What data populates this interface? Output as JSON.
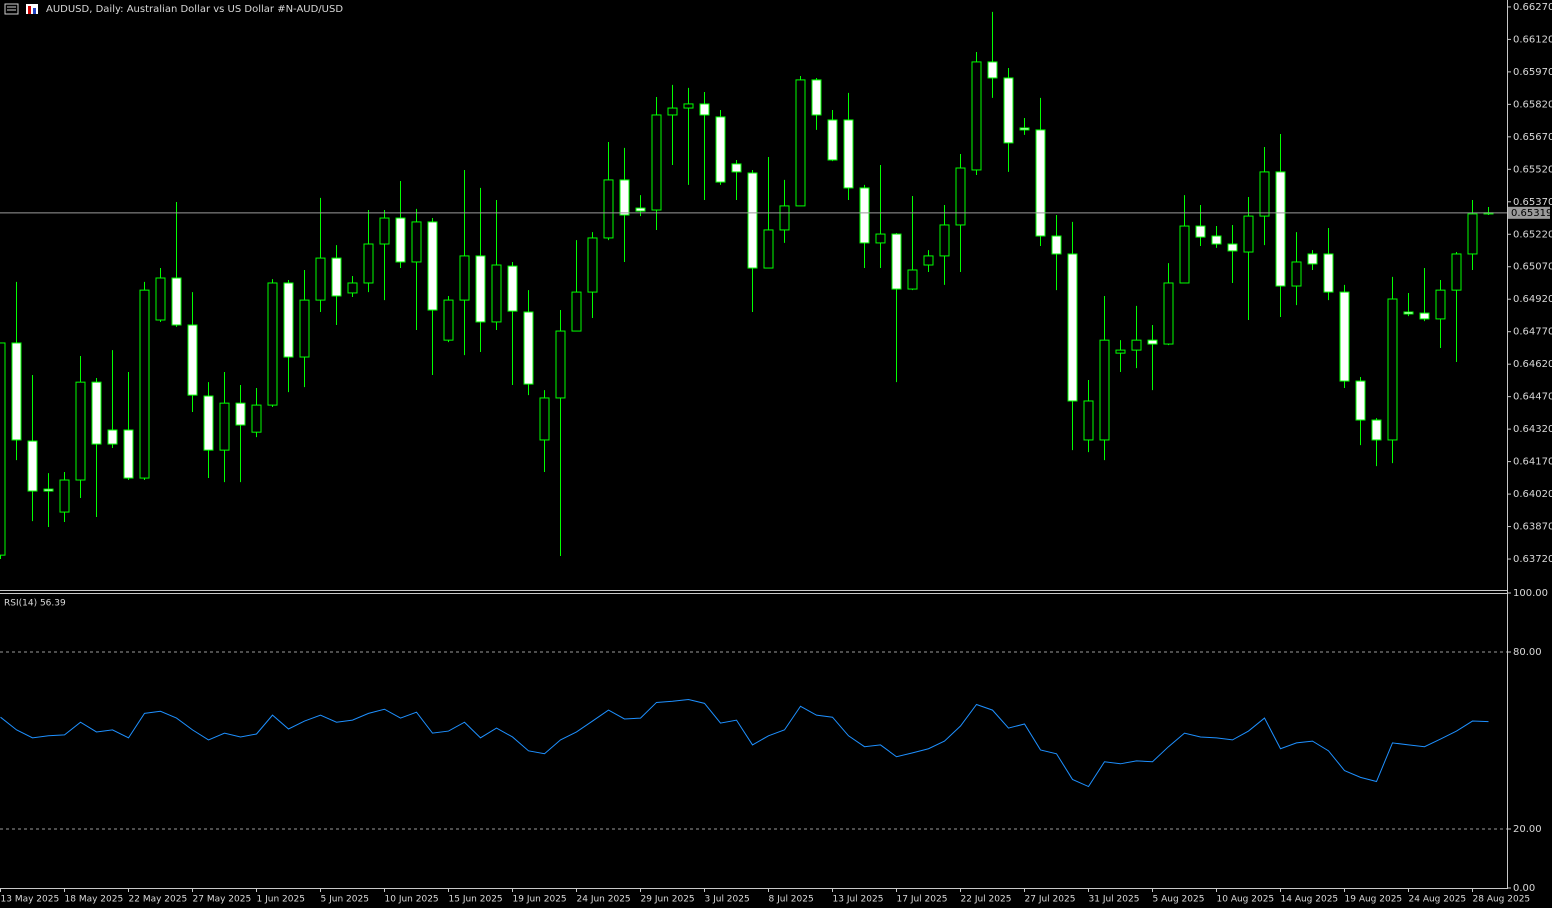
{
  "chart_data": [
    {
      "type": "candlestick",
      "title": "AUDUSD, Daily:  Australian Dollar vs US Dollar #N-AUD/USD",
      "categories": [
        "13 May 2025",
        null,
        null,
        null,
        "18 May 2025",
        null,
        null,
        null,
        "22 May 2025",
        null,
        null,
        null,
        "27 May 2025",
        null,
        null,
        null,
        "1 Jun 2025",
        null,
        null,
        null,
        "5 Jun 2025",
        null,
        null,
        null,
        "10 Jun 2025",
        null,
        null,
        null,
        "15 Jun 2025",
        null,
        null,
        null,
        "19 Jun 2025",
        null,
        null,
        null,
        "24 Jun 2025",
        null,
        null,
        null,
        "29 Jun 2025",
        null,
        null,
        null,
        "3 Jul 2025",
        null,
        null,
        null,
        "8 Jul 2025",
        null,
        null,
        null,
        "13 Jul 2025",
        null,
        null,
        null,
        "17 Jul 2025",
        null,
        null,
        null,
        "22 Jul 2025",
        null,
        null,
        null,
        "27 Jul 2025",
        null,
        null,
        null,
        "31 Jul 2025",
        null,
        null,
        null,
        "5 Aug 2025",
        null,
        null,
        null,
        "10 Aug 2025",
        null,
        null,
        null,
        "14 Aug 2025",
        null,
        null,
        null,
        "19 Aug 2025",
        null,
        null,
        null,
        "24 Aug 2025",
        null,
        null,
        null,
        "28 Aug 2025",
        null
      ],
      "open": [
        0.63738,
        0.64718,
        0.64265,
        0.64043,
        0.63937,
        0.64085,
        0.64537,
        0.64316,
        0.64316,
        0.64094,
        0.64824,
        0.65018,
        0.64801,
        0.64473,
        0.64223,
        0.6444,
        0.64306,
        0.64431,
        0.64995,
        0.64653,
        0.64916,
        0.6511,
        0.64949,
        0.64995,
        0.65175,
        0.65295,
        0.65092,
        0.65277,
        0.64731,
        0.64916,
        0.6512,
        0.64815,
        0.65073,
        0.64861,
        0.6427,
        0.64464,
        0.64773,
        0.64953,
        0.65203,
        0.65471,
        0.65341,
        0.65332,
        0.65771,
        0.65803,
        0.65822,
        0.65762,
        0.65545,
        0.65503,
        0.65064,
        0.6524,
        0.65351,
        0.65933,
        0.65748,
        0.65748,
        0.65434,
        0.6518,
        0.65221,
        0.64967,
        0.65078,
        0.6512,
        0.65263,
        0.65517,
        0.66016,
        0.65942,
        0.65711,
        0.65702,
        0.65212,
        0.65129,
        0.6427,
        0.6427,
        0.64671,
        0.64685,
        0.64731,
        0.64713,
        0.64995,
        0.65258,
        0.65212,
        0.65175,
        0.65138,
        0.65304,
        0.65508,
        0.64981,
        0.65129,
        0.65129,
        0.64953,
        0.64542,
        0.64362,
        0.6427,
        0.64861,
        0.64856,
        0.64829,
        0.64962,
        0.65129,
        0.65314
      ],
      "high": [
        0.64718,
        0.65,
        0.6457,
        0.64117,
        0.64122,
        0.64658,
        0.64556,
        0.64685,
        0.64584,
        0.65,
        0.65064,
        0.65369,
        0.64953,
        0.64537,
        0.64584,
        0.64524,
        0.6451,
        0.65013,
        0.65009,
        0.65055,
        0.65388,
        0.6517,
        0.65027,
        0.65332,
        0.65332,
        0.65466,
        0.65337,
        0.65295,
        0.64935,
        0.65517,
        0.65434,
        0.65378,
        0.65092,
        0.64962,
        0.645,
        0.6487,
        0.65193,
        0.6523,
        0.65646,
        0.65619,
        0.65401,
        0.65854,
        0.6591,
        0.65896,
        0.65877,
        0.65794,
        0.65563,
        0.65517,
        0.65577,
        0.65471,
        0.65951,
        0.65942,
        0.65794,
        0.65873,
        0.65448,
        0.6554,
        0.65226,
        0.65397,
        0.65147,
        0.65355,
        0.65591,
        0.66062,
        0.66247,
        0.65988,
        0.65757,
        0.6585,
        0.65309,
        0.65277,
        0.64547,
        0.64935,
        0.64731,
        0.64889,
        0.64801,
        0.65087,
        0.65401,
        0.65355,
        0.65258,
        0.65263,
        0.65392,
        0.65623,
        0.65683,
        0.6523,
        0.65147,
        0.65249,
        0.64986,
        0.64561,
        0.64371,
        0.65023,
        0.64949,
        0.65064,
        0.65009,
        0.65138,
        0.65378,
        0.65346
      ],
      "low": [
        0.6372,
        0.64177,
        0.63895,
        0.63868,
        0.63891,
        0.64002,
        0.63914,
        0.64233,
        0.64085,
        0.64085,
        0.64815,
        0.64792,
        0.64399,
        0.64094,
        0.64075,
        0.64075,
        0.64283,
        0.64422,
        0.64491,
        0.64514,
        0.64861,
        0.64801,
        0.6493,
        0.64953,
        0.64916,
        0.65064,
        0.64778,
        0.6457,
        0.64722,
        0.64662,
        0.64676,
        0.64778,
        0.64524,
        0.64477,
        0.64122,
        0.63734,
        0.64773,
        0.64833,
        0.65193,
        0.65092,
        0.65304,
        0.6524,
        0.6554,
        0.65448,
        0.65378,
        0.65448,
        0.65378,
        0.64861,
        0.65064,
        0.6518,
        0.65351,
        0.65702,
        0.65558,
        0.65378,
        0.65064,
        0.65064,
        0.64537,
        0.64962,
        0.65046,
        0.64986,
        0.65046,
        0.65494,
        0.6585,
        0.65508,
        0.65679,
        0.65166,
        0.64962,
        0.64223,
        0.64214,
        0.64177,
        0.64584,
        0.64602,
        0.645,
        0.64708,
        0.64995,
        0.65166,
        0.65157,
        0.64995,
        0.64824,
        0.6517,
        0.64838,
        0.64893,
        0.65055,
        0.64916,
        0.6451,
        0.64246,
        0.64149,
        0.64163,
        0.64842,
        0.64819,
        0.64695,
        0.6463,
        0.65055,
        0.65309
      ],
      "close": [
        0.64718,
        0.6427,
        0.64034,
        0.64034,
        0.64085,
        0.64537,
        0.64251,
        0.64251,
        0.64094,
        0.64962,
        0.65018,
        0.64801,
        0.64477,
        0.64223,
        0.6444,
        0.64339,
        0.64431,
        0.64995,
        0.64653,
        0.64916,
        0.6511,
        0.64935,
        0.64995,
        0.65175,
        0.65295,
        0.65092,
        0.65277,
        0.6487,
        0.64916,
        0.6512,
        0.64815,
        0.65078,
        0.64865,
        0.64528,
        0.64464,
        0.64773,
        0.64953,
        0.65203,
        0.65471,
        0.65309,
        0.65327,
        0.65771,
        0.65803,
        0.65822,
        0.65771,
        0.65461,
        0.65508,
        0.65064,
        0.6524,
        0.65351,
        0.65933,
        0.65771,
        0.65563,
        0.65434,
        0.6518,
        0.65221,
        0.64967,
        0.65055,
        0.6512,
        0.65263,
        0.65526,
        0.66016,
        0.65942,
        0.65642,
        0.65702,
        0.65212,
        0.65129,
        0.6445,
        0.6445,
        0.64731,
        0.64685,
        0.64731,
        0.64713,
        0.64995,
        0.65258,
        0.65207,
        0.65175,
        0.65143,
        0.65304,
        0.65508,
        0.64981,
        0.65092,
        0.65083,
        0.64953,
        0.64542,
        0.64362,
        0.6427,
        0.64921,
        0.64852,
        0.64829,
        0.64962,
        0.65129,
        0.65314,
        0.65319
      ],
      "last_price": 0.65319,
      "bull_color": "#000000",
      "bear_color": "#ffffff",
      "wick_color": "#00ff00",
      "price_line_color": "#9a9a9a",
      "ylim": [
        0.63577,
        0.66302
      ],
      "yticks": [
        {
          "value": 0.6627,
          "label": "0.66270"
        },
        {
          "value": 0.6612,
          "label": "0.66120"
        },
        {
          "value": 0.6597,
          "label": "0.65970"
        },
        {
          "value": 0.6582,
          "label": "0.65820"
        },
        {
          "value": 0.6567,
          "label": "0.65670"
        },
        {
          "value": 0.6552,
          "label": "0.65520"
        },
        {
          "value": 0.6537,
          "label": "0.65370"
        },
        {
          "value": 0.6522,
          "label": "0.65220"
        },
        {
          "value": 0.6507,
          "label": "0.65070"
        },
        {
          "value": 0.6492,
          "label": "0.64920"
        },
        {
          "value": 0.6477,
          "label": "0.64770"
        },
        {
          "value": 0.6462,
          "label": "0.64620"
        },
        {
          "value": 0.6447,
          "label": "0.64470"
        },
        {
          "value": 0.6432,
          "label": "0.64320"
        },
        {
          "value": 0.6417,
          "label": "0.64170"
        },
        {
          "value": 0.6402,
          "label": "0.64020"
        },
        {
          "value": 0.6387,
          "label": "0.63870"
        },
        {
          "value": 0.6372,
          "label": "0.63720"
        }
      ]
    },
    {
      "type": "line",
      "title": "RSI(14) 56.39",
      "values": [
        57.9,
        53.6,
        50.9,
        51.6,
        51.9,
        56.2,
        52.9,
        53.6,
        50.9,
        59.2,
        59.9,
        57.6,
        53.6,
        50.2,
        52.5,
        51.2,
        52.2,
        58.6,
        53.9,
        56.6,
        58.6,
        56.2,
        56.9,
        59.2,
        60.6,
        57.6,
        59.6,
        52.5,
        53.2,
        56.2,
        50.9,
        54.2,
        51.2,
        46.5,
        45.5,
        50.2,
        52.9,
        56.6,
        60.3,
        57.3,
        57.6,
        62.9,
        63.3,
        63.9,
        62.6,
        55.9,
        56.9,
        48.5,
        51.6,
        53.6,
        61.6,
        58.6,
        57.9,
        51.6,
        47.9,
        48.5,
        44.5,
        45.8,
        47.2,
        49.8,
        54.9,
        62.2,
        60.3,
        54.2,
        55.6,
        46.8,
        45.5,
        36.8,
        34.4,
        42.8,
        42.1,
        43.1,
        42.8,
        47.9,
        52.5,
        51.2,
        50.9,
        50.2,
        53.2,
        57.6,
        47.2,
        49.2,
        49.8,
        46.5,
        39.8,
        37.5,
        36.1,
        49.2,
        48.5,
        47.9,
        50.5,
        53.2,
        56.6,
        56.39
      ],
      "color": "#1e90ff",
      "level_color": "#9a9a9a",
      "levels": [
        80,
        20
      ],
      "ylim": [
        0,
        100
      ],
      "yticks": [
        {
          "value": 100,
          "label": "100.00"
        },
        {
          "value": 80,
          "label": "80.00"
        },
        {
          "value": 20,
          "label": "20.00"
        },
        {
          "value": 0,
          "label": "0.00"
        }
      ]
    }
  ]
}
